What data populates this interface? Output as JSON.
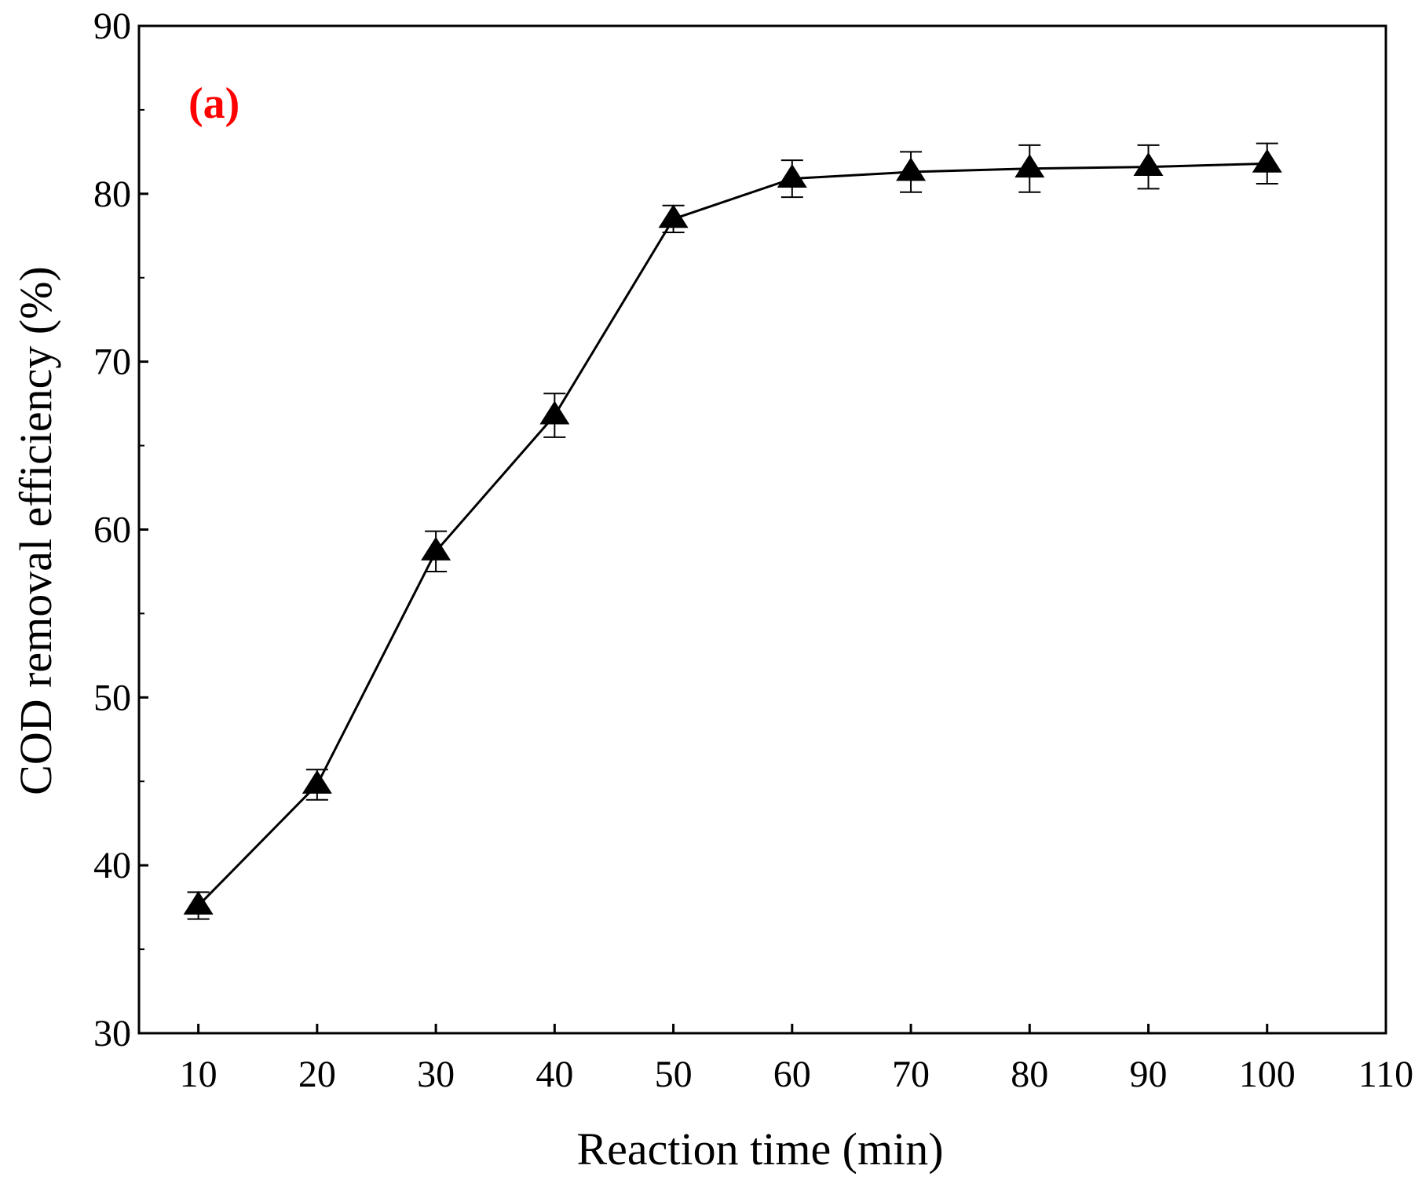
{
  "chart_data": {
    "type": "line",
    "panel_label": "(a)",
    "xlabel": "Reaction time (min)",
    "ylabel": "COD removal efficiency (%)",
    "xlim": [
      5,
      110
    ],
    "ylim": [
      30,
      90
    ],
    "x_ticks": [
      10,
      20,
      30,
      40,
      50,
      60,
      70,
      80,
      90,
      100,
      110
    ],
    "y_ticks": [
      30,
      40,
      50,
      60,
      70,
      80,
      90
    ],
    "y_minor_ticks": [
      35,
      45,
      55,
      65,
      75,
      85
    ],
    "grid": false,
    "marker": "filled-triangle",
    "series": [
      {
        "name": "COD removal efficiency",
        "color": "#000000",
        "x": [
          10,
          20,
          30,
          40,
          50,
          60,
          70,
          80,
          90,
          100
        ],
        "values": [
          37.6,
          44.8,
          58.7,
          66.8,
          78.5,
          80.9,
          81.3,
          81.5,
          81.6,
          81.8
        ],
        "errors": [
          0.8,
          0.9,
          1.2,
          1.3,
          0.8,
          1.1,
          1.2,
          1.4,
          1.3,
          1.2
        ]
      }
    ]
  }
}
